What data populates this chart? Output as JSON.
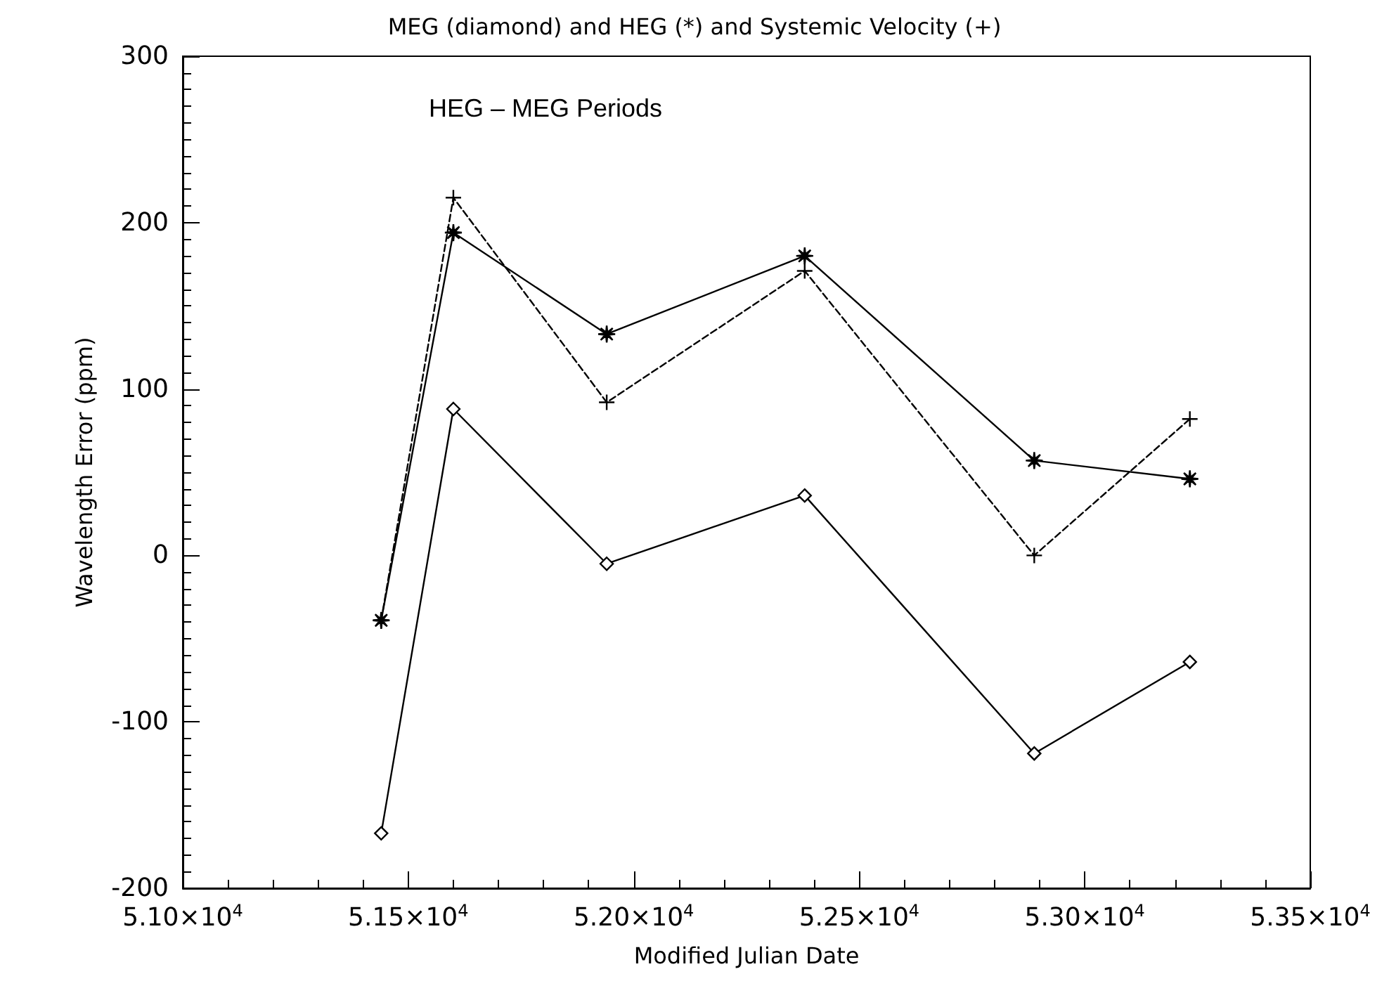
{
  "chart_data": {
    "type": "line",
    "title": "MEG (diamond) and HEG (*) and Systemic Velocity (+)",
    "xlabel": "Modified Julian Date",
    "ylabel": "Wavelength Error (ppm)",
    "annotations": [
      "HEG – MEG Periods"
    ],
    "x": [
      51440,
      51600,
      51940,
      52379,
      52888,
      53233
    ],
    "series": [
      {
        "color": "#000000",
        "marker": "diamond",
        "line_style": "solid",
        "values": [
          -167,
          88,
          -5,
          36,
          -119,
          -64
        ]
      },
      {
        "color": "#000000",
        "marker": "star",
        "line_style": "solid",
        "values": [
          -39,
          194,
          133,
          180,
          57,
          46
        ]
      },
      {
        "color": "#000000",
        "marker": "cross",
        "line_style": "dashed",
        "values": [
          -39,
          215,
          92,
          171,
          0,
          82
        ]
      }
    ],
    "xlim": [
      51000,
      53500
    ],
    "xticks": [
      {
        "value": 51000,
        "label": "5.10×10$^{4}$"
      },
      {
        "value": 51500,
        "label": "5.15×10$^{4}$"
      },
      {
        "value": 52000,
        "label": "5.20×10$^{4}$"
      },
      {
        "value": 52500,
        "label": "5.25×10$^{4}$"
      },
      {
        "value": 53000,
        "label": "5.30×10$^{4}$"
      },
      {
        "value": 53500,
        "label": "5.35×10$^{4}$"
      }
    ],
    "ylim": [
      -200,
      300
    ],
    "yticks": [
      -200,
      -100,
      0,
      100,
      200,
      300
    ],
    "grid": false
  }
}
